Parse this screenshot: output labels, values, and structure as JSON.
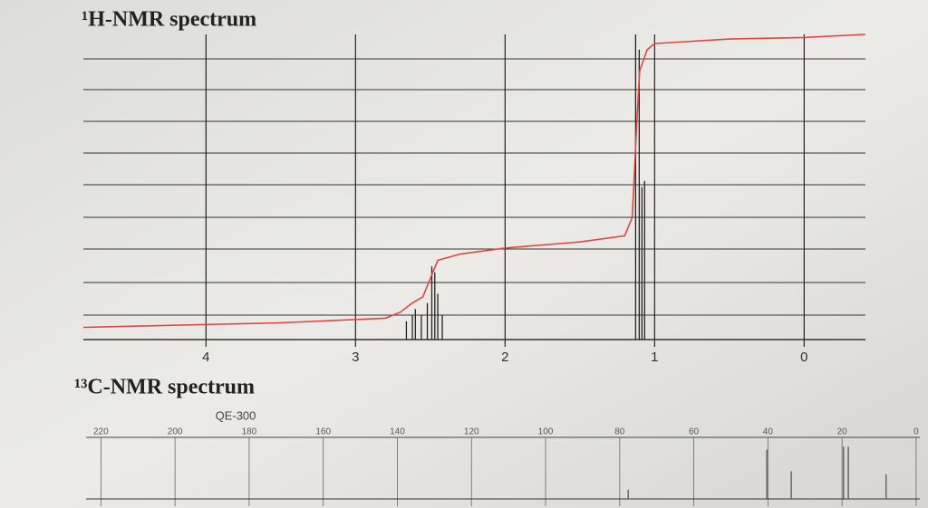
{
  "chart_data": [
    {
      "type": "stem",
      "title": "¹H-NMR spectrum",
      "xlim": [
        4.82,
        -0.41
      ],
      "xticks": [
        4,
        3,
        2,
        1,
        0
      ],
      "ylim": [
        0,
        100
      ],
      "x": [
        2.66,
        2.62,
        2.6,
        2.56,
        2.52,
        2.49,
        2.47,
        2.45,
        2.42,
        1.127,
        1.103,
        1.085,
        1.067
      ],
      "values": [
        6,
        8,
        10,
        8,
        12,
        24,
        22,
        15,
        8,
        100,
        95,
        50,
        52
      ],
      "color": "#222222",
      "integral": {
        "color": "#e0473c",
        "x": [
          4.82,
          3.5,
          2.8,
          2.7,
          2.62,
          2.55,
          2.5,
          2.45,
          2.3,
          2.0,
          1.5,
          1.2,
          1.15,
          1.12,
          1.1,
          1.05,
          1.0,
          0.5,
          0.0,
          -0.41
        ],
        "values": [
          4,
          5.5,
          7,
          9,
          12,
          14,
          20,
          26,
          28,
          30,
          32,
          34,
          40,
          70,
          88,
          95,
          97,
          98.5,
          99,
          100
        ]
      }
    },
    {
      "type": "stem",
      "title": "¹³C-NMR spectrum",
      "subtitle": "QE-300",
      "xlim": [
        224,
        -1
      ],
      "xticks": [
        220,
        200,
        180,
        160,
        140,
        120,
        100,
        80,
        60,
        40,
        20,
        0
      ],
      "ylim": [
        0,
        100
      ],
      "x": [
        77.7,
        40.3,
        33.7,
        19.6,
        18.3,
        8.1
      ],
      "values": [
        15,
        80,
        45,
        85,
        85,
        40
      ],
      "color": "#555555"
    }
  ]
}
